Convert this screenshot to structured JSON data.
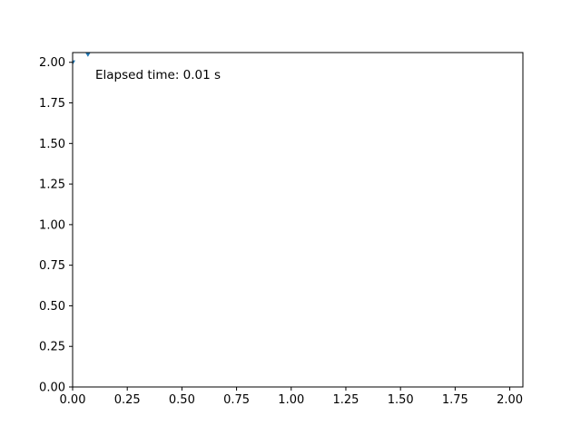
{
  "chart_data": {
    "type": "scatter",
    "title": "",
    "xlabel": "",
    "ylabel": "",
    "xlim": [
      0.0,
      2.06
    ],
    "ylim": [
      0.0,
      2.06
    ],
    "x_ticks": [
      "0.00",
      "0.25",
      "0.50",
      "0.75",
      "1.00",
      "1.25",
      "1.50",
      "1.75",
      "2.00"
    ],
    "y_ticks": [
      "0.00",
      "0.25",
      "0.50",
      "0.75",
      "1.00",
      "1.25",
      "1.50",
      "1.75",
      "2.00"
    ],
    "grid": false,
    "series": [
      {
        "points": [
          {
            "x": 0.0,
            "y": 2.0
          },
          {
            "x": 0.07,
            "y": 2.05
          }
        ]
      }
    ],
    "annotation": "Elapsed time: 0.01 s",
    "colors": {
      "marker": "#1f77b4",
      "axes": "#000000",
      "background": "#ffffff"
    }
  }
}
